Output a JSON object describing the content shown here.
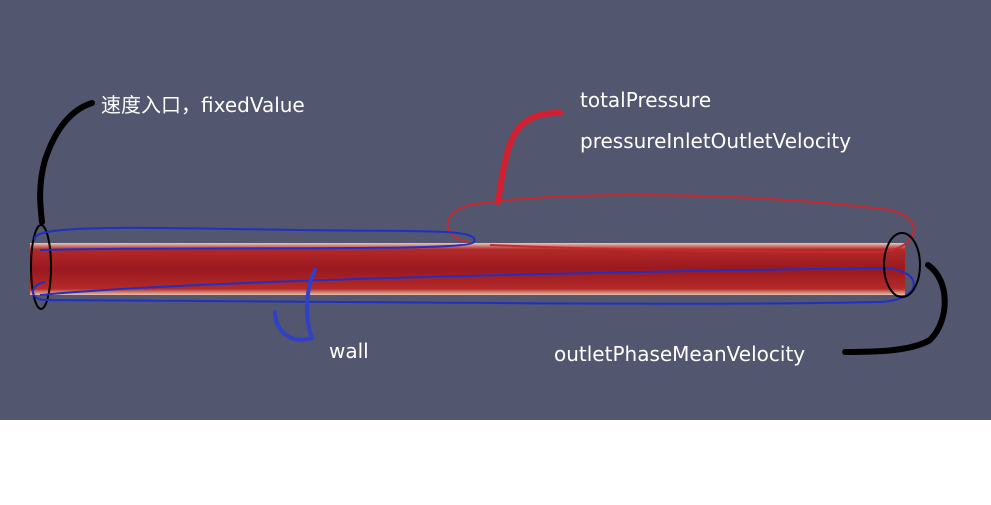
{
  "annotations": {
    "inlet": "速度入口，fixedValue",
    "outlet_pressure": "totalPressure",
    "outlet_velocity": "pressureInletOutletVelocity",
    "wall": "wall",
    "outlet_phase": "outletPhaseMeanVelocity"
  }
}
